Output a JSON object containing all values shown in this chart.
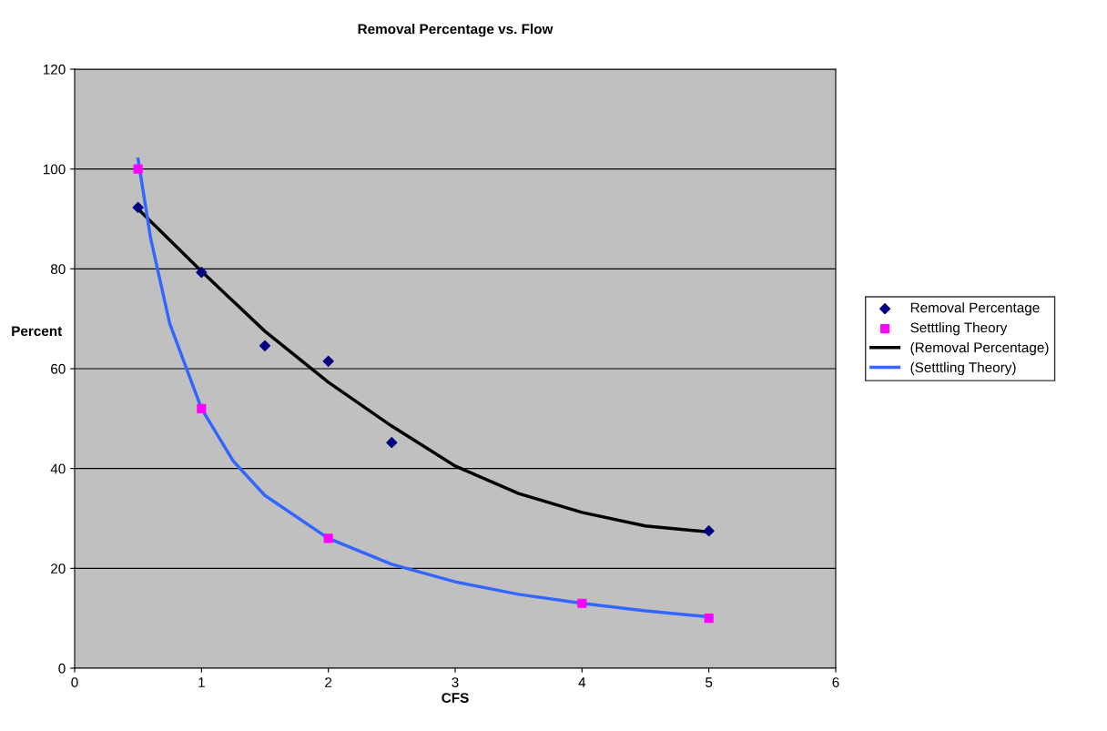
{
  "chart_data": {
    "type": "scatter",
    "title": "Removal Percentage vs. Flow",
    "xlabel": "CFS",
    "ylabel": "Percent",
    "series": [
      {
        "name": "Removal Percentage",
        "marker": "diamond",
        "color": "#000080",
        "x": [
          0.5,
          1,
          1.5,
          2,
          2.5,
          5
        ],
        "values": [
          92.3,
          79.3,
          64.6,
          61.5,
          45.2,
          27.5
        ]
      },
      {
        "name": "Setttling Theory",
        "marker": "square",
        "color": "#ff00ff",
        "x": [
          0.5,
          1,
          2,
          4,
          5
        ],
        "values": [
          100,
          52,
          26,
          13,
          10
        ]
      },
      {
        "name": "(Removal Percentage)",
        "type": "line",
        "marker": "none",
        "line_style": "solid",
        "color": "#000000",
        "x": [
          0.5,
          1,
          1.5,
          2,
          2.5,
          3,
          3.5,
          4,
          4.5,
          5
        ],
        "values": [
          92,
          79.5,
          67.5,
          57.3,
          48.5,
          40.5,
          35,
          31.2,
          28.5,
          27.3
        ]
      },
      {
        "name": "(Setttling Theory)",
        "type": "line",
        "marker": "none",
        "line_style": "solid",
        "color": "#3366ff",
        "x": [
          0.5,
          0.6,
          0.75,
          1,
          1.25,
          1.5,
          2,
          2.5,
          3,
          3.5,
          4,
          4.5,
          5
        ],
        "values": [
          102,
          86,
          69,
          52,
          41.5,
          34.6,
          26,
          20.8,
          17.3,
          14.8,
          13,
          11.5,
          10.3
        ]
      }
    ],
    "xlim": [
      0,
      6
    ],
    "xticks": [
      0,
      1,
      2,
      3,
      4,
      5,
      6
    ],
    "ylim": [
      0,
      120
    ],
    "yticks": [
      0,
      20,
      40,
      60,
      80,
      100,
      120
    ],
    "grid": "y",
    "legend": "right"
  }
}
